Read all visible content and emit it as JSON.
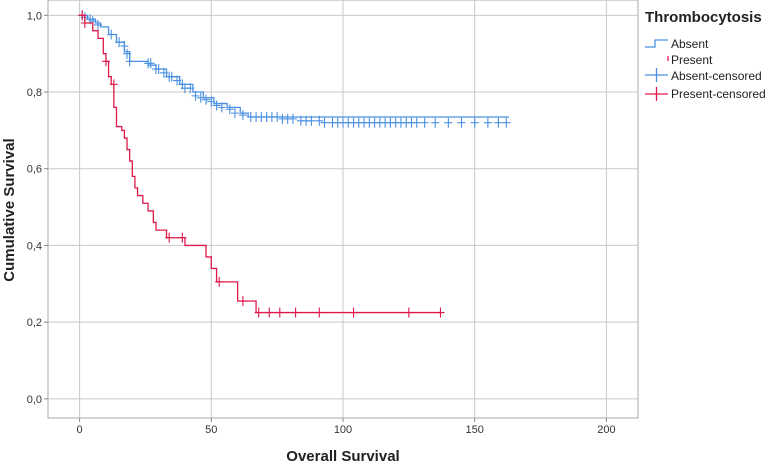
{
  "chart_data": {
    "type": "line",
    "xlabel": "Overall Survival",
    "ylabel": "Cumulative Survival",
    "xlim": [
      -12,
      212
    ],
    "ylim": [
      -0.05,
      1.04
    ],
    "x_ticks": [
      0,
      50,
      100,
      150,
      200
    ],
    "x_tick_labels": [
      "0",
      "50",
      "100",
      "150",
      "200"
    ],
    "y_ticks": [
      0.0,
      0.2,
      0.4,
      0.6,
      0.8,
      1.0
    ],
    "y_tick_labels": [
      "0,0",
      "0,2",
      "0,4",
      "0,6",
      "0,8",
      "1,0"
    ],
    "grid": true,
    "legend": {
      "title": "Thrombocytosis",
      "placement": "top-right",
      "entries": [
        "Absent",
        "Present",
        "Absent-censored",
        "Present-censored"
      ]
    },
    "series": [
      {
        "name": "Absent",
        "color": "#4a90e2",
        "steps": [
          [
            0,
            1.0
          ],
          [
            3,
            0.99
          ],
          [
            6,
            0.98
          ],
          [
            8,
            0.97
          ],
          [
            11,
            0.95
          ],
          [
            14,
            0.93
          ],
          [
            17,
            0.905
          ],
          [
            19,
            0.88
          ],
          [
            26,
            0.87
          ],
          [
            29,
            0.86
          ],
          [
            33,
            0.84
          ],
          [
            38,
            0.82
          ],
          [
            43,
            0.8
          ],
          [
            47,
            0.785
          ],
          [
            51,
            0.77
          ],
          [
            56,
            0.76
          ],
          [
            61,
            0.745
          ],
          [
            64,
            0.735
          ],
          [
            163,
            0.735
          ]
        ],
        "censored": [
          [
            1,
            1.0
          ],
          [
            2,
            0.995
          ],
          [
            4,
            0.99
          ],
          [
            5,
            0.985
          ],
          [
            7,
            0.975
          ],
          [
            12,
            0.95
          ],
          [
            15,
            0.93
          ],
          [
            17,
            0.92
          ],
          [
            18,
            0.9
          ],
          [
            19,
            0.88
          ],
          [
            26,
            0.875
          ],
          [
            27,
            0.875
          ],
          [
            29,
            0.86
          ],
          [
            30,
            0.86
          ],
          [
            32,
            0.85
          ],
          [
            34,
            0.84
          ],
          [
            35,
            0.84
          ],
          [
            37,
            0.83
          ],
          [
            39,
            0.82
          ],
          [
            40,
            0.81
          ],
          [
            42,
            0.81
          ],
          [
            44,
            0.79
          ],
          [
            46,
            0.785
          ],
          [
            48,
            0.78
          ],
          [
            50,
            0.775
          ],
          [
            52,
            0.765
          ],
          [
            54,
            0.76
          ],
          [
            57,
            0.755
          ],
          [
            59,
            0.745
          ],
          [
            62,
            0.74
          ],
          [
            65,
            0.735
          ],
          [
            67,
            0.735
          ],
          [
            69,
            0.735
          ],
          [
            71,
            0.735
          ],
          [
            73,
            0.735
          ],
          [
            75,
            0.735
          ],
          [
            77,
            0.73
          ],
          [
            79,
            0.73
          ],
          [
            81,
            0.73
          ],
          [
            84,
            0.725
          ],
          [
            86,
            0.725
          ],
          [
            88,
            0.725
          ],
          [
            91,
            0.725
          ],
          [
            93,
            0.72
          ],
          [
            96,
            0.72
          ],
          [
            98,
            0.72
          ],
          [
            100,
            0.72
          ],
          [
            102,
            0.72
          ],
          [
            104,
            0.72
          ],
          [
            106,
            0.72
          ],
          [
            108,
            0.72
          ],
          [
            110,
            0.72
          ],
          [
            112,
            0.72
          ],
          [
            114,
            0.72
          ],
          [
            116,
            0.72
          ],
          [
            118,
            0.72
          ],
          [
            120,
            0.72
          ],
          [
            122,
            0.72
          ],
          [
            124,
            0.72
          ],
          [
            126,
            0.72
          ],
          [
            128,
            0.72
          ],
          [
            131,
            0.72
          ],
          [
            135,
            0.72
          ],
          [
            140,
            0.72
          ],
          [
            145,
            0.72
          ],
          [
            150,
            0.72
          ],
          [
            155,
            0.72
          ],
          [
            159,
            0.72
          ],
          [
            162,
            0.72
          ]
        ]
      },
      {
        "name": "Present",
        "color": "#e0194a",
        "steps": [
          [
            0,
            1.0
          ],
          [
            2,
            0.98
          ],
          [
            5,
            0.96
          ],
          [
            7,
            0.94
          ],
          [
            9,
            0.9
          ],
          [
            10,
            0.88
          ],
          [
            11,
            0.84
          ],
          [
            12,
            0.82
          ],
          [
            13,
            0.76
          ],
          [
            14,
            0.71
          ],
          [
            16,
            0.7
          ],
          [
            17,
            0.68
          ],
          [
            18,
            0.65
          ],
          [
            19,
            0.62
          ],
          [
            20,
            0.58
          ],
          [
            21,
            0.55
          ],
          [
            22,
            0.53
          ],
          [
            24,
            0.51
          ],
          [
            26,
            0.49
          ],
          [
            28,
            0.46
          ],
          [
            29,
            0.44
          ],
          [
            33,
            0.42
          ],
          [
            40,
            0.4
          ],
          [
            44,
            0.4
          ],
          [
            48,
            0.37
          ],
          [
            50,
            0.34
          ],
          [
            52,
            0.305
          ],
          [
            60,
            0.255
          ],
          [
            67,
            0.225
          ],
          [
            137,
            0.225
          ]
        ],
        "censored": [
          [
            1,
            1.0
          ],
          [
            2,
            0.98
          ],
          [
            10,
            0.88
          ],
          [
            13,
            0.82
          ],
          [
            34,
            0.42
          ],
          [
            39,
            0.42
          ],
          [
            53,
            0.305
          ],
          [
            62,
            0.255
          ],
          [
            68,
            0.225
          ],
          [
            72,
            0.225
          ],
          [
            76,
            0.225
          ],
          [
            82,
            0.225
          ],
          [
            91,
            0.225
          ],
          [
            104,
            0.225
          ],
          [
            125,
            0.225
          ],
          [
            137,
            0.225
          ]
        ]
      }
    ]
  }
}
